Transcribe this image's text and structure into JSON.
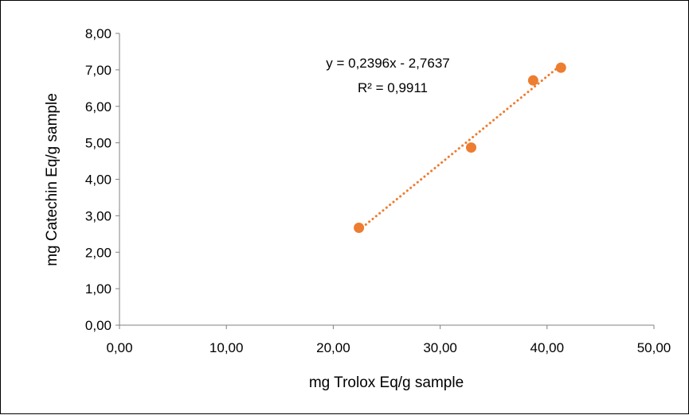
{
  "chart_data": {
    "type": "scatter",
    "xlabel": "mg Trolox Eq/g sample",
    "ylabel": "mg Catechin Eq/g sample",
    "xlim": [
      0,
      50
    ],
    "ylim": [
      0,
      8
    ],
    "x_ticks": [
      "0,00",
      "10,00",
      "20,00",
      "30,00",
      "40,00",
      "50,00"
    ],
    "y_ticks": [
      "0,00",
      "1,00",
      "2,00",
      "3,00",
      "4,00",
      "5,00",
      "6,00",
      "7,00",
      "8,00"
    ],
    "x_tick_values": [
      0,
      10,
      20,
      30,
      40,
      50
    ],
    "y_tick_values": [
      0,
      1,
      2,
      3,
      4,
      5,
      6,
      7,
      8
    ],
    "grid": false,
    "points": [
      {
        "x": 22.4,
        "y": 2.67
      },
      {
        "x": 32.9,
        "y": 4.87
      },
      {
        "x": 38.7,
        "y": 6.71
      },
      {
        "x": 41.3,
        "y": 7.06
      }
    ],
    "trendline": {
      "type": "linear",
      "slope": 0.2396,
      "intercept": -2.7637,
      "x_range": [
        22.4,
        41.3
      ],
      "equation": "y = 0,2396x - 2,7637",
      "r_squared": "R² = 0,9911"
    },
    "colors": {
      "marker": "#ED7D31",
      "trendline": "#ED7D31",
      "axis": "#808080"
    }
  }
}
